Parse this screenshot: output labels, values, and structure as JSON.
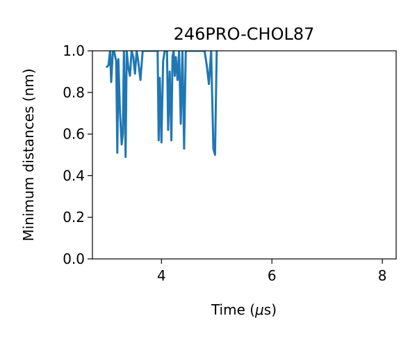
{
  "chart_data": {
    "type": "line",
    "title": "246PRO-CHOL87",
    "xlabel_prefix": "Time (",
    "xlabel_mu": "μ",
    "xlabel_suffix": "s)",
    "ylabel": "Minimum distances (nm)",
    "xlim": [
      2.75,
      8.25
    ],
    "ylim": [
      0.0,
      1.0
    ],
    "xticks": [
      4,
      6,
      8
    ],
    "xtick_labels": [
      "4",
      "6",
      "8"
    ],
    "yticks": [
      0.0,
      0.2,
      0.4,
      0.6,
      0.8,
      1.0
    ],
    "ytick_labels": [
      "0.0",
      "0.2",
      "0.4",
      "0.6",
      "0.8",
      "1.0"
    ],
    "grid": false,
    "series": [
      {
        "color": "#1f77b4",
        "x": [
          3.0,
          3.04,
          3.07,
          3.09,
          3.12,
          3.14,
          3.18,
          3.2,
          3.22,
          3.25,
          3.28,
          3.3,
          3.32,
          3.35,
          3.37,
          3.4,
          3.43,
          3.46,
          3.49,
          3.52,
          3.55,
          3.58,
          3.62,
          3.66,
          3.7,
          3.93,
          3.95,
          3.97,
          4.0,
          4.03,
          4.06,
          4.08,
          4.1,
          4.12,
          4.15,
          4.18,
          4.2,
          4.22,
          4.24,
          4.26,
          4.29,
          4.32,
          4.35,
          4.38,
          4.41,
          4.44,
          4.47,
          4.78,
          4.82,
          4.86,
          4.9,
          4.94,
          4.97,
          5.0
        ],
        "y": [
          0.92,
          0.93,
          1.0,
          0.85,
          1.0,
          1.0,
          0.95,
          0.51,
          0.96,
          0.7,
          0.55,
          0.6,
          1.0,
          0.49,
          1.0,
          0.92,
          0.88,
          1.0,
          0.97,
          0.89,
          1.0,
          0.95,
          0.86,
          1.0,
          1.0,
          1.0,
          0.57,
          0.87,
          0.56,
          0.95,
          1.0,
          1.0,
          1.0,
          0.62,
          0.9,
          0.57,
          0.97,
          1.0,
          0.88,
          0.97,
          0.86,
          1.0,
          0.65,
          1.0,
          0.53,
          1.0,
          1.0,
          1.0,
          0.93,
          0.84,
          1.0,
          0.53,
          0.5,
          1.0
        ]
      }
    ]
  }
}
